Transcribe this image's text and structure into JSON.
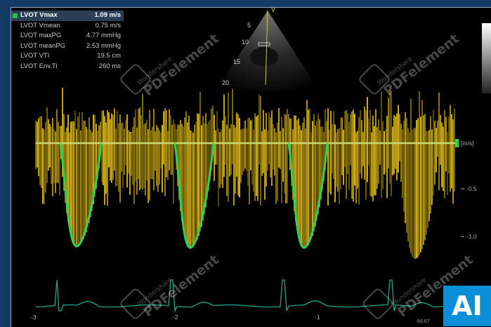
{
  "measurements": [
    {
      "label": "LVOT Vmax",
      "value": "1.09 m/s",
      "active": true
    },
    {
      "label": "LVOT Vmean",
      "value": "0.75 m/s",
      "active": false
    },
    {
      "label": "LVOT maxPG",
      "value": "4.77 mmHg",
      "active": false
    },
    {
      "label": "LVOT meanPG",
      "value": "2.53 mmHg",
      "active": false
    },
    {
      "label": "LVOT VTI",
      "value": "19.5 cm",
      "active": false
    },
    {
      "label": "LVOT Env.Ti",
      "value": "260 ms",
      "active": false
    }
  ],
  "depth_scale": [
    "5",
    "10",
    "15",
    "20"
  ],
  "velocity_scale": {
    "unit": "[m/s]",
    "ticks": [
      "-0.5",
      "-1.0"
    ]
  },
  "time_axis": [
    "-3",
    "-2",
    "-1"
  ],
  "ecg_rate": "66.67",
  "watermark": {
    "brand": "Wondershare",
    "product": "PDFelement"
  },
  "badge": "AI",
  "colors": {
    "doppler": "#e8c21a",
    "trace": "#2ed158",
    "ecg": "#1ea58c"
  }
}
